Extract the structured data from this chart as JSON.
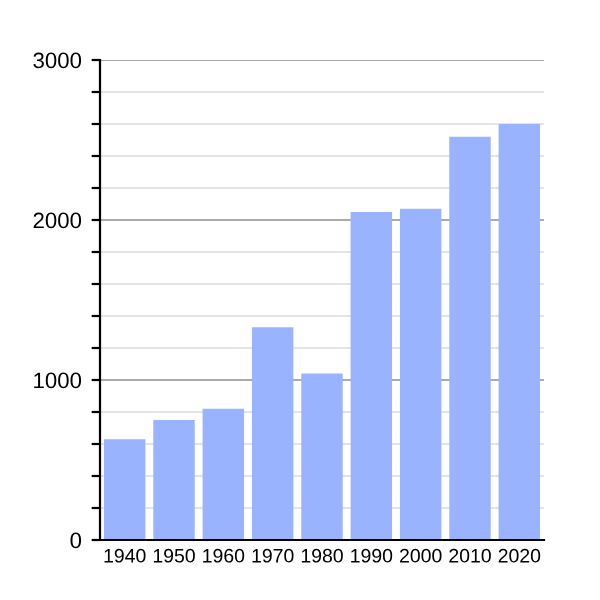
{
  "chart_data": {
    "type": "bar",
    "categories": [
      "1940",
      "1950",
      "1960",
      "1970",
      "1980",
      "1990",
      "2000",
      "2010",
      "2020"
    ],
    "values": [
      630,
      750,
      820,
      1330,
      1040,
      2050,
      2070,
      2520,
      2600
    ],
    "color": "#99b3ff",
    "ylim": [
      0,
      3000
    ],
    "yticks": [
      0,
      {
        "value": 200,
        "label": null
      },
      {
        "value": 400,
        "label": null
      },
      {
        "value": 600,
        "label": null
      },
      {
        "value": 800,
        "label": null
      },
      1000,
      {
        "value": 1200,
        "label": null
      },
      {
        "value": 1400,
        "label": null
      },
      {
        "value": 1600,
        "label": null
      },
      {
        "value": 1800,
        "label": null
      },
      2000,
      {
        "value": 2200,
        "label": null
      },
      {
        "value": 2400,
        "label": null
      },
      {
        "value": 2600,
        "label": null
      },
      {
        "value": 2800,
        "label": null
      },
      3000
    ],
    "grid": "y"
  }
}
